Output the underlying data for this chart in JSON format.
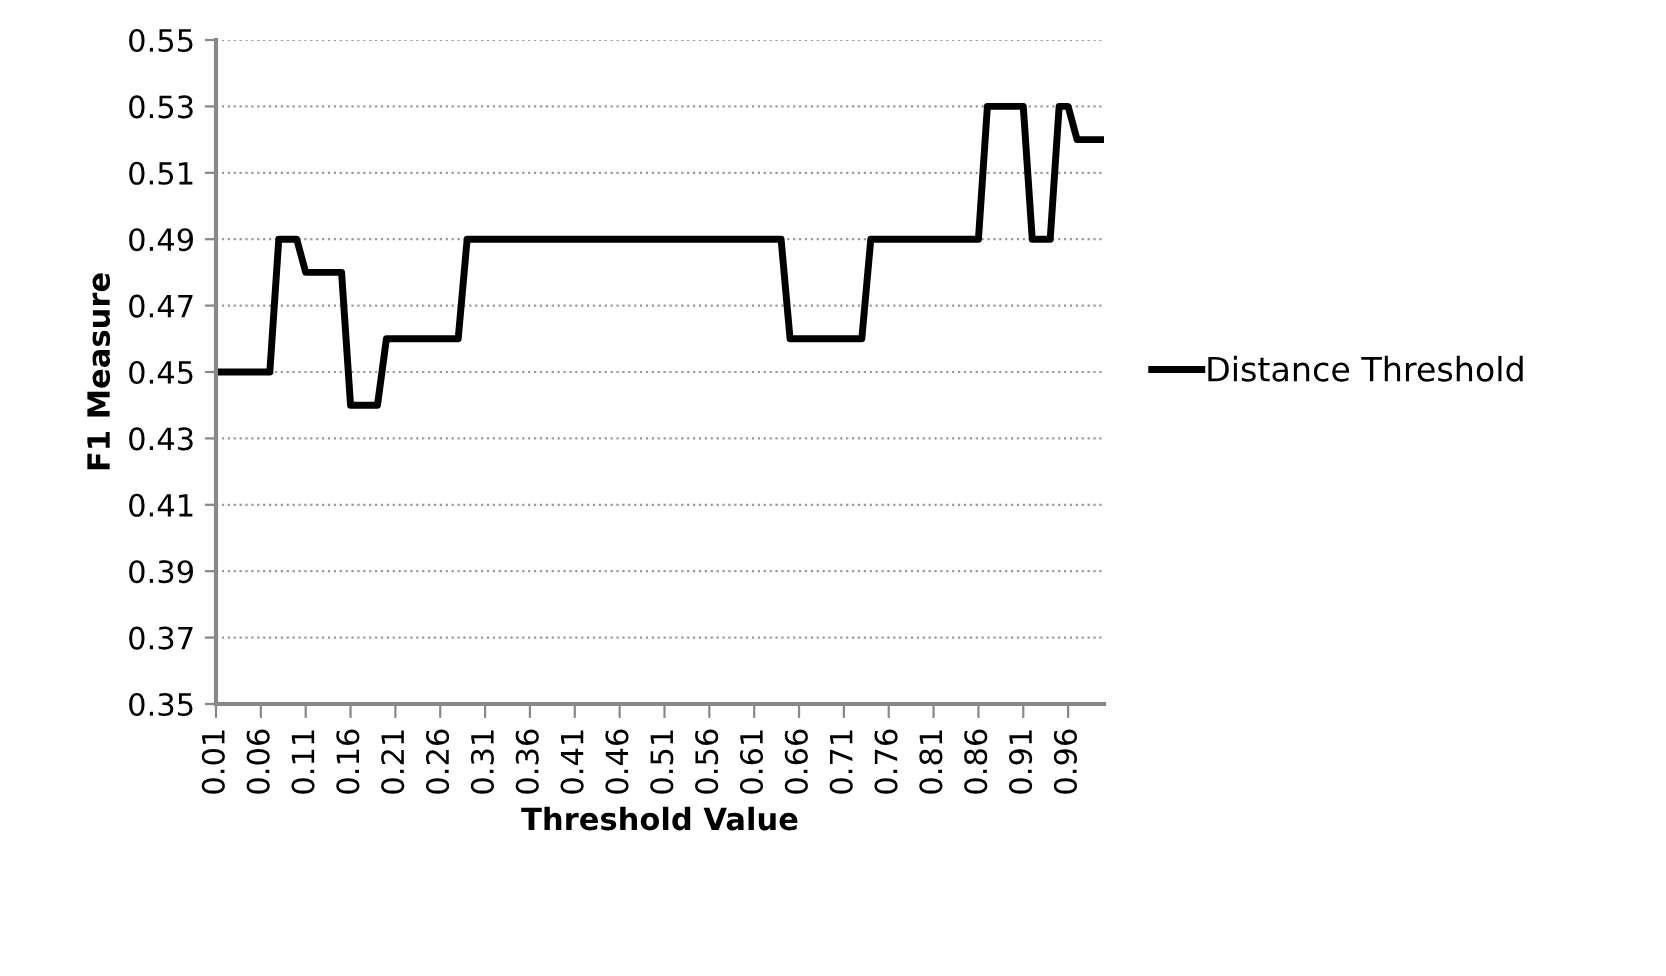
{
  "chart_data": {
    "type": "line",
    "xlabel": "Threshold Value",
    "ylabel": "F1 Measure",
    "categories": [
      "0.01",
      null,
      null,
      null,
      null,
      "0.06",
      null,
      null,
      null,
      null,
      "0.11",
      null,
      null,
      null,
      null,
      "0.16",
      null,
      null,
      null,
      null,
      "0.21",
      null,
      null,
      null,
      null,
      "0.26",
      null,
      null,
      null,
      null,
      "0.31",
      null,
      null,
      null,
      null,
      "0.36",
      null,
      null,
      null,
      null,
      "0.41",
      null,
      null,
      null,
      null,
      "0.46",
      null,
      null,
      null,
      null,
      "0.51",
      null,
      null,
      null,
      null,
      "0.56",
      null,
      null,
      null,
      null,
      "0.61",
      null,
      null,
      null,
      null,
      "0.66",
      null,
      null,
      null,
      null,
      "0.71",
      null,
      null,
      null,
      null,
      "0.76",
      null,
      null,
      null,
      null,
      "0.81",
      null,
      null,
      null,
      null,
      "0.86",
      null,
      null,
      null,
      null,
      "0.91",
      null,
      null,
      null,
      null,
      "0.96",
      null,
      null,
      null,
      null
    ],
    "series": [
      {
        "name": "Distance Threshold",
        "color": "#000000",
        "values": [
          0.45,
          0.45,
          0.45,
          0.45,
          0.45,
          0.45,
          0.45,
          0.49,
          0.49,
          0.49,
          0.48,
          0.48,
          0.48,
          0.48,
          0.48,
          0.44,
          0.44,
          0.44,
          0.44,
          0.46,
          0.46,
          0.46,
          0.46,
          0.46,
          0.46,
          0.46,
          0.46,
          0.46,
          0.49,
          0.49,
          0.49,
          0.49,
          0.49,
          0.49,
          0.49,
          0.49,
          0.49,
          0.49,
          0.49,
          0.49,
          0.49,
          0.49,
          0.49,
          0.49,
          0.49,
          0.49,
          0.49,
          0.49,
          0.49,
          0.49,
          0.49,
          0.49,
          0.49,
          0.49,
          0.49,
          0.49,
          0.49,
          0.49,
          0.49,
          0.49,
          0.49,
          0.49,
          0.49,
          0.49,
          0.46,
          0.46,
          0.46,
          0.46,
          0.46,
          0.46,
          0.46,
          0.46,
          0.46,
          0.49,
          0.49,
          0.49,
          0.49,
          0.49,
          0.49,
          0.49,
          0.49,
          0.49,
          0.49,
          0.49,
          0.49,
          0.49,
          0.53,
          0.53,
          0.53,
          0.53,
          0.53,
          0.49,
          0.49,
          0.49,
          0.53,
          0.53,
          0.52,
          0.52,
          0.52,
          0.52
        ]
      }
    ],
    "ylim": [
      0.35,
      0.55
    ],
    "yticks": [
      0.35,
      0.37,
      0.39,
      0.41,
      0.43,
      0.45,
      0.47,
      0.49,
      0.51,
      0.53,
      0.55
    ],
    "grid": "y",
    "legend": "right",
    "marker": "none",
    "line_style": "solid"
  }
}
